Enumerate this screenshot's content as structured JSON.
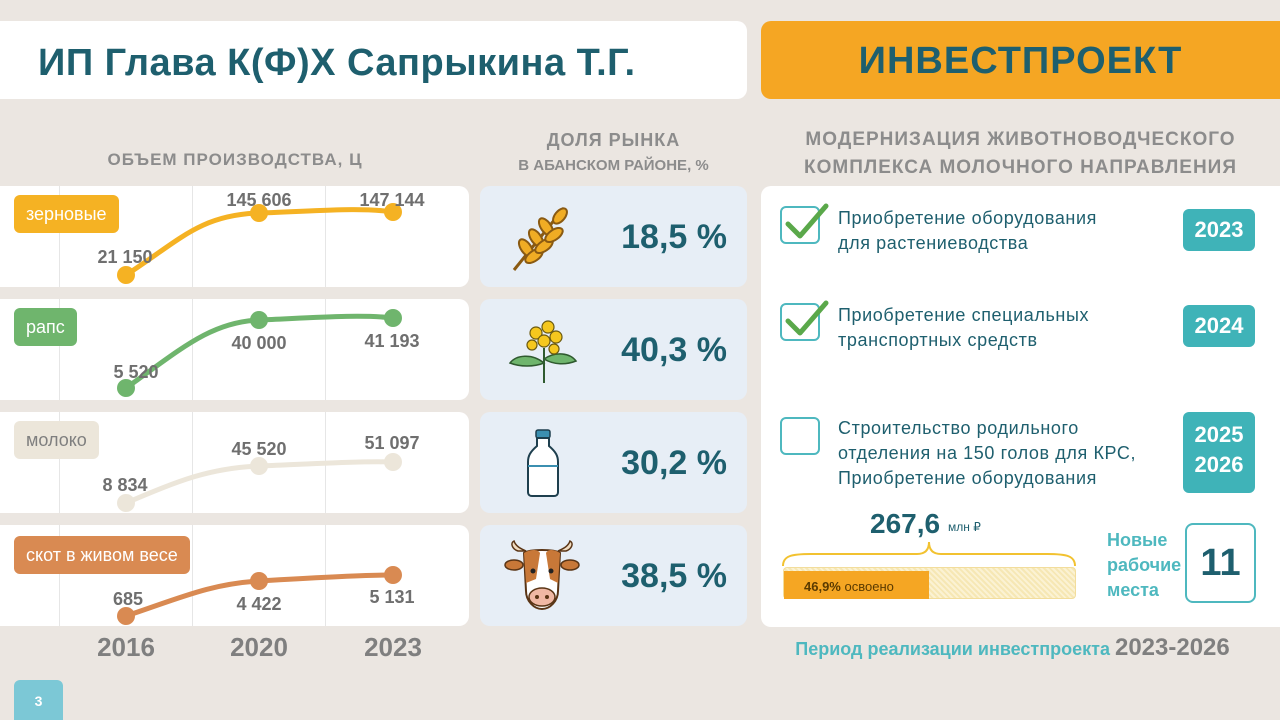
{
  "title": "ИП Глава К(Ф)Х Сапрыкина Т.Г.",
  "invest_banner": "ИНВЕСТПРОЕКТ",
  "production": {
    "heading": "ОБЪЕМ ПРОИЗВОДСТВА,  Ц",
    "years": [
      "2016",
      "2020",
      "2023"
    ],
    "categories": [
      {
        "name": "зерновые",
        "color": "#f5b223",
        "values": [
          "21 150",
          "145 606",
          "147 144"
        ]
      },
      {
        "name": "рапс",
        "color": "#6fb56d",
        "values": [
          "5 520",
          "40 000",
          "41 193"
        ]
      },
      {
        "name": "молоко",
        "color": "#ece6da",
        "values": [
          "8 834",
          "45 520",
          "51 097"
        ]
      },
      {
        "name": "скот в живом весе",
        "color": "#d98a52",
        "values": [
          "685",
          "4 422",
          "5 131"
        ]
      }
    ]
  },
  "market_share": {
    "heading_line1": "ДОЛЯ РЫНКА",
    "heading_line2": "В АБАНСКОМ РАЙОНЕ, %",
    "items": [
      {
        "icon": "wheat-icon",
        "value": "18,5 %"
      },
      {
        "icon": "rapeseed-flower-icon",
        "value": "40,3 %"
      },
      {
        "icon": "milk-bottle-icon",
        "value": "30,2 %"
      },
      {
        "icon": "cow-head-icon",
        "value": "38,5 %"
      }
    ]
  },
  "modernization": {
    "heading_line1": "МОДЕРНИЗАЦИЯ  ЖИВОТНОВОДЧЕСКОГО",
    "heading_line2": "КОМПЛЕКСА  МОЛОЧНОГО  НАПРАВЛЕНИЯ",
    "steps": [
      {
        "line1": "Приобретение  оборудования",
        "line2": "для  растениеводства",
        "line3": "",
        "year": "2023",
        "year2": "",
        "done": true
      },
      {
        "line1": "Приобретение  специальных",
        "line2": "транспортных  средств",
        "line3": "",
        "year": "2024",
        "year2": "",
        "done": true
      },
      {
        "line1": "Строительство  родильного",
        "line2": "отделения  на 150 голов для КРС,",
        "line3": "Приобретение  оборудования",
        "year": "2025",
        "year2": "2026",
        "done": false
      }
    ],
    "investment_value": "267,6",
    "investment_unit": "млн ₽",
    "progress_fraction": 0.469,
    "progress_percent": "46,9%",
    "progress_label": "освоено",
    "jobs_label_line1": "Новые",
    "jobs_label_line2": "рабочие",
    "jobs_label_line3": "места",
    "jobs_count": "11"
  },
  "period_label": "Период реализации инвестпроекта",
  "period_years": "2023-2026",
  "page_number": "3",
  "colors": {
    "accent": "#f5a623",
    "teal": "#4eb8bf",
    "dark_teal": "#1e5f6e"
  }
}
